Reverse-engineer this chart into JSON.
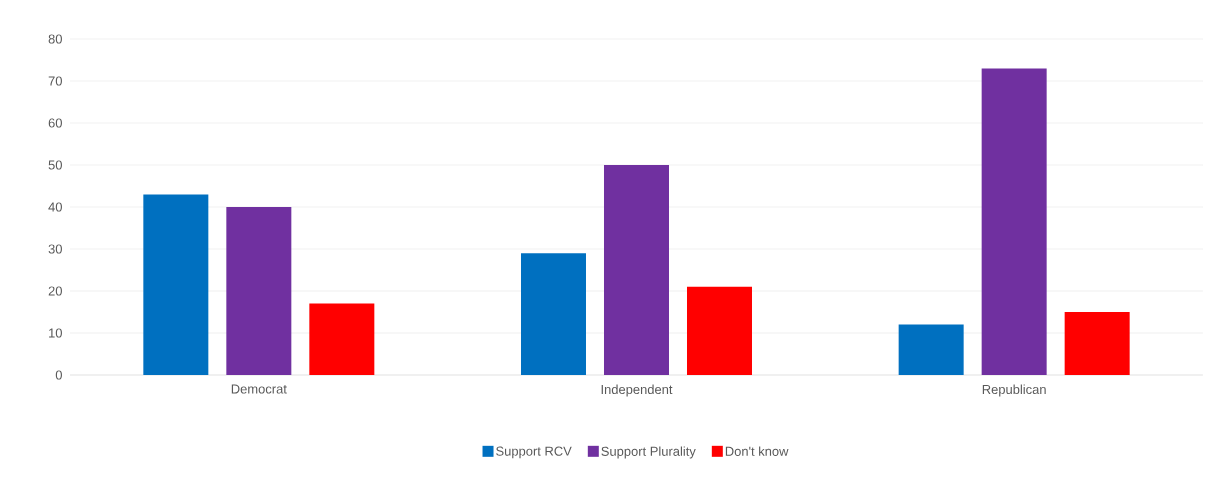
{
  "chart_data": {
    "type": "bar",
    "categories": [
      "Democrat",
      "Independent",
      "Republican"
    ],
    "series": [
      {
        "name": "Support RCV",
        "color": "#0070c0",
        "values": [
          43,
          29,
          12
        ]
      },
      {
        "name": "Support Plurality",
        "color": "#7030a0",
        "values": [
          40,
          50,
          73
        ]
      },
      {
        "name": "Don't know",
        "color": "#ff0000",
        "values": [
          17,
          21,
          15
        ]
      }
    ],
    "ylim": [
      0,
      80
    ],
    "yticks": [
      0,
      10,
      20,
      30,
      40,
      50,
      60,
      70,
      80
    ],
    "grid": "y",
    "legend": "bottom"
  }
}
